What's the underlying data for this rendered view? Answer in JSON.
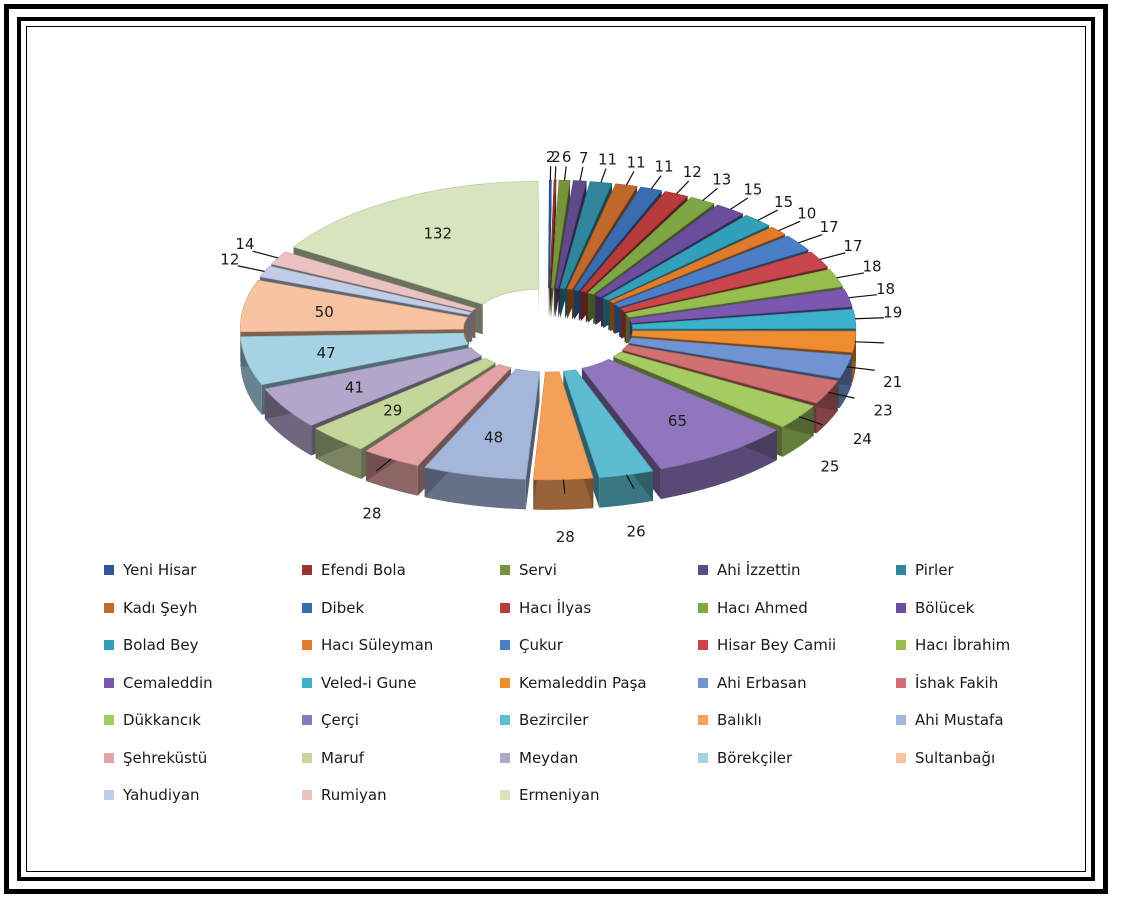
{
  "chart_data": {
    "type": "pie",
    "style": "3d-exploded",
    "legend_position": "bottom",
    "slices": [
      {
        "label": "Yeni Hisar",
        "value": 2,
        "color": "#2F5597"
      },
      {
        "label": "Efendi Bola",
        "value": 2,
        "color": "#943634"
      },
      {
        "label": "Servi",
        "value": 6,
        "color": "#77933C"
      },
      {
        "label": "Ahi İzzettin",
        "value": 7,
        "color": "#5F4A8B"
      },
      {
        "label": "Pirler",
        "value": 11,
        "color": "#31859C"
      },
      {
        "label": "Kadı Şeyh",
        "value": 11,
        "color": "#C0692B"
      },
      {
        "label": "Dibek",
        "value": 11,
        "color": "#3A6DB0"
      },
      {
        "label": "Hacı İlyas",
        "value": 12,
        "color": "#B83A3A"
      },
      {
        "label": "Hacı Ahmed",
        "value": 13,
        "color": "#7FA645"
      },
      {
        "label": "Bölücek",
        "value": 15,
        "color": "#6B4F9E"
      },
      {
        "label": "Bolad Bey",
        "value": 15,
        "color": "#31A0B8"
      },
      {
        "label": "Hacı Süleyman",
        "value": 10,
        "color": "#E07B2E"
      },
      {
        "label": "Çukur",
        "value": 17,
        "color": "#4A7FC8"
      },
      {
        "label": "Hisar Bey Camii",
        "value": 17,
        "color": "#C9464A"
      },
      {
        "label": "Hacı İbrahim",
        "value": 18,
        "color": "#96BE4E"
      },
      {
        "label": "Cemaleddin",
        "value": 18,
        "color": "#7A58B0"
      },
      {
        "label": "Veled-i Gune",
        "value": 19,
        "color": "#3BB1CC"
      },
      {
        "label": "Kemaleddin Paşa",
        "value": 21,
        "color": "#F08C30"
      },
      {
        "label": "Ahi Erbasan",
        "value": 23,
        "color": "#7094D2"
      },
      {
        "label": "İshak Fakih",
        "value": 24,
        "color": "#D07070"
      },
      {
        "label": "Dükkancık",
        "value": 25,
        "color": "#A5CB63"
      },
      {
        "label": "Çerçi",
        "value": 65,
        "color": "#9077BD"
      },
      {
        "label": "Bezirciler",
        "value": 26,
        "color": "#5DBCD2"
      },
      {
        "label": "Balıklı",
        "value": 28,
        "color": "#F5A05A"
      },
      {
        "label": "Ahi Mustafa",
        "value": 48,
        "color": "#A5B6DB"
      },
      {
        "label": "Şehreküstü",
        "value": 28,
        "color": "#E4A3A2"
      },
      {
        "label": "Maruf",
        "value": 29,
        "color": "#C4D79B"
      },
      {
        "label": "Meydan",
        "value": 41,
        "color": "#B2A6CA"
      },
      {
        "label": "Börekçiler",
        "value": 47,
        "color": "#A6D3E3"
      },
      {
        "label": "Sultanbağı",
        "value": 50,
        "color": "#F8C3A0"
      },
      {
        "label": "Yahudiyan",
        "value": 12,
        "color": "#BFCDE8"
      },
      {
        "label": "Rumiyan",
        "value": 14,
        "color": "#E9C2C2"
      },
      {
        "label": "Ermeniyan",
        "value": 132,
        "color": "#D7E4BD"
      }
    ]
  }
}
